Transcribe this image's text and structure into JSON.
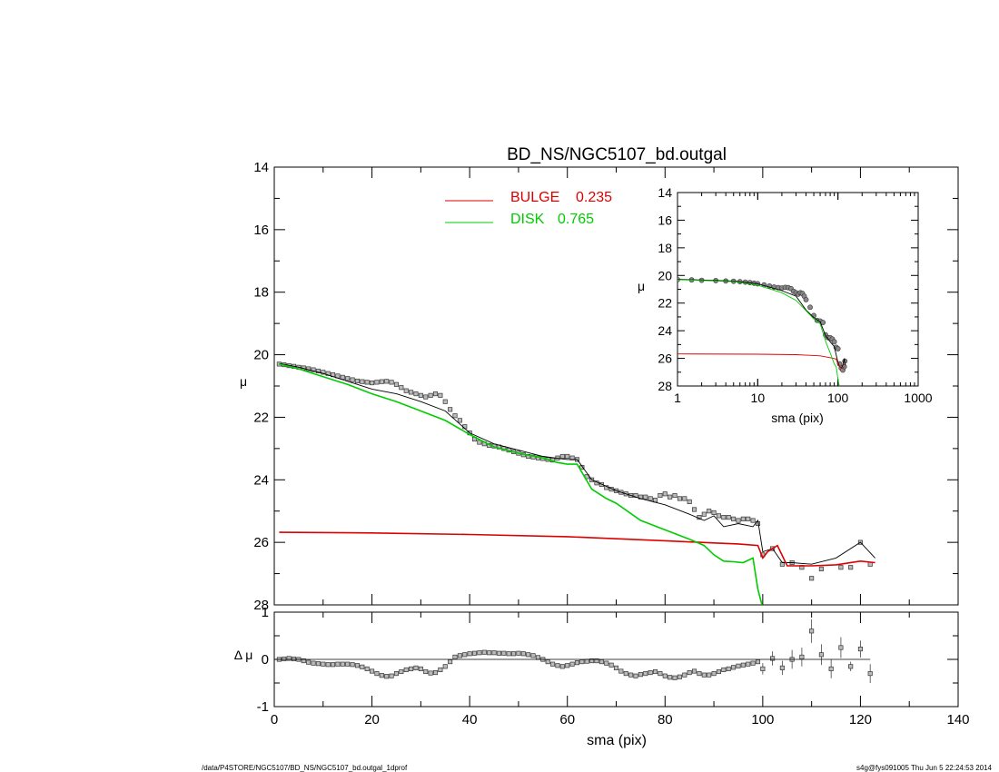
{
  "title": "BD_NS/NGC5107_bd.outgal",
  "footer": {
    "left": "/data/P4STORE/NGC5107/BD_NS/NGC5107_bd.outgal_1dprof",
    "right": "s4g@fys091005  Thu Jun  5 22:24:53 2014"
  },
  "colors": {
    "bulge": "#dd0000",
    "disk": "#00cc00",
    "model": "#000000",
    "data": "#555555"
  },
  "chart_data": [
    {
      "id": "main",
      "type": "line",
      "title": "BD_NS/NGC5107_bd.outgal",
      "xlabel": "",
      "ylabel": "μ",
      "xlim": [
        0,
        140
      ],
      "ylim": [
        28,
        14
      ],
      "y_inverted": true,
      "xticks": [
        "0",
        "20",
        "40",
        "60",
        "80",
        "100",
        "120",
        "140"
      ],
      "yticks": [
        "14",
        "16",
        "18",
        "20",
        "22",
        "24",
        "26",
        "28"
      ],
      "legend": {
        "position": "top-center",
        "entries": [
          {
            "name": "BULGE",
            "value": "0.235",
            "color": "#dd0000"
          },
          {
            "name": "DISK",
            "value": "0.765",
            "color": "#00cc00"
          }
        ]
      },
      "series": [
        {
          "name": "data",
          "style": "squares",
          "x": [
            1,
            2,
            3,
            4,
            5,
            6,
            7,
            8,
            9,
            10,
            11,
            12,
            13,
            14,
            15,
            16,
            17,
            18,
            19,
            20,
            21,
            22,
            23,
            24,
            25,
            26,
            27,
            28,
            29,
            30,
            31,
            32,
            33,
            34,
            35,
            36,
            37,
            38,
            39,
            40,
            41,
            42,
            43,
            44,
            45,
            46,
            47,
            48,
            49,
            50,
            51,
            52,
            53,
            54,
            55,
            56,
            57,
            58,
            59,
            60,
            61,
            62,
            63,
            64,
            65,
            66,
            67,
            68,
            69,
            70,
            71,
            72,
            73,
            74,
            75,
            76,
            77,
            78,
            79,
            80,
            81,
            82,
            83,
            84,
            85,
            86,
            87,
            88,
            89,
            90,
            91,
            92,
            93,
            94,
            95,
            96,
            97,
            98,
            99,
            100,
            102,
            104,
            106,
            108,
            110,
            112,
            114,
            116,
            118,
            120,
            122
          ],
          "y": [
            20.3,
            20.32,
            20.35,
            20.37,
            20.4,
            20.42,
            20.45,
            20.48,
            20.52,
            20.56,
            20.6,
            20.64,
            20.68,
            20.72,
            20.76,
            20.8,
            20.84,
            20.86,
            20.88,
            20.9,
            20.88,
            20.86,
            20.85,
            20.88,
            20.95,
            21.05,
            21.15,
            21.2,
            21.25,
            21.3,
            21.35,
            21.3,
            21.25,
            21.3,
            21.5,
            21.75,
            21.95,
            22.1,
            22.3,
            22.5,
            22.7,
            22.8,
            22.85,
            22.9,
            22.92,
            22.95,
            23.0,
            23.05,
            23.1,
            23.15,
            23.2,
            23.25,
            23.27,
            23.3,
            23.32,
            23.35,
            23.37,
            23.3,
            23.25,
            23.25,
            23.3,
            23.35,
            23.6,
            23.9,
            24.0,
            24.1,
            24.15,
            24.25,
            24.3,
            24.35,
            24.4,
            24.45,
            24.5,
            24.5,
            24.55,
            24.55,
            24.6,
            24.65,
            24.5,
            24.45,
            24.55,
            24.5,
            24.6,
            24.6,
            24.7,
            24.95,
            25.2,
            25.1,
            25.0,
            25.05,
            25.15,
            25.2,
            25.2,
            25.25,
            25.3,
            25.25,
            25.25,
            25.3,
            25.4,
            26.4,
            26.2,
            26.7,
            26.65,
            26.8,
            27.15,
            26.85,
            28.1,
            26.8,
            26.8,
            26.0,
            26.7
          ]
        },
        {
          "name": "model",
          "style": "line",
          "x": [
            1,
            5,
            10,
            15,
            20,
            25,
            30,
            35,
            40,
            45,
            50,
            55,
            60,
            62,
            65,
            70,
            75,
            80,
            85,
            88,
            90,
            92,
            95,
            98,
            99,
            100,
            102,
            104,
            106,
            110,
            115,
            120,
            123
          ],
          "y": [
            20.28,
            20.4,
            20.6,
            20.85,
            21.1,
            21.25,
            21.5,
            21.8,
            22.5,
            22.85,
            23.05,
            23.25,
            23.35,
            23.35,
            24.0,
            24.35,
            24.6,
            24.8,
            25.1,
            25.3,
            25.15,
            25.5,
            25.4,
            25.5,
            25.3,
            26.3,
            26.2,
            26.65,
            26.65,
            26.7,
            26.5,
            26.0,
            26.5
          ]
        },
        {
          "name": "BULGE",
          "style": "line",
          "x": [
            1,
            20,
            40,
            60,
            80,
            90,
            95,
            99,
            100,
            101,
            103,
            105,
            110,
            115,
            120,
            123
          ],
          "y": [
            25.68,
            25.7,
            25.75,
            25.82,
            25.95,
            26.02,
            26.05,
            26.1,
            26.5,
            26.3,
            26.1,
            26.75,
            26.75,
            26.72,
            26.6,
            26.65
          ]
        },
        {
          "name": "DISK",
          "style": "line",
          "x": [
            1,
            5,
            10,
            15,
            20,
            25,
            30,
            35,
            40,
            45,
            50,
            55,
            58,
            60,
            62,
            65,
            68,
            70,
            75,
            80,
            85,
            88,
            90,
            92,
            94,
            96,
            98,
            99,
            100
          ],
          "y": [
            20.3,
            20.45,
            20.7,
            20.95,
            21.25,
            21.5,
            21.8,
            22.1,
            22.55,
            22.95,
            23.15,
            23.3,
            23.45,
            23.5,
            23.5,
            24.3,
            24.6,
            24.75,
            25.3,
            25.6,
            25.9,
            26.1,
            26.4,
            26.6,
            26.62,
            26.65,
            26.5,
            27.5,
            28.1
          ]
        }
      ]
    },
    {
      "id": "residual",
      "type": "scatter",
      "xlabel": "sma (pix)",
      "ylabel": "Δ μ",
      "xlim": [
        0,
        140
      ],
      "ylim": [
        -1,
        1
      ],
      "xticks": [
        "0",
        "20",
        "40",
        "60",
        "80",
        "100",
        "120",
        "140"
      ],
      "yticks": [
        "1",
        "0",
        "-1"
      ],
      "series": [
        {
          "name": "residual",
          "x": [
            1,
            2,
            3,
            4,
            5,
            6,
            7,
            8,
            9,
            10,
            11,
            12,
            13,
            14,
            15,
            16,
            17,
            18,
            19,
            20,
            21,
            22,
            23,
            24,
            25,
            26,
            27,
            28,
            29,
            30,
            31,
            32,
            33,
            34,
            35,
            36,
            37,
            38,
            39,
            40,
            41,
            42,
            43,
            44,
            45,
            46,
            47,
            48,
            49,
            50,
            51,
            52,
            53,
            54,
            55,
            56,
            57,
            58,
            59,
            60,
            61,
            62,
            63,
            64,
            65,
            66,
            67,
            68,
            69,
            70,
            71,
            72,
            73,
            74,
            75,
            76,
            77,
            78,
            79,
            80,
            81,
            82,
            83,
            84,
            85,
            86,
            87,
            88,
            89,
            90,
            91,
            92,
            93,
            94,
            95,
            96,
            97,
            98,
            99,
            100,
            102,
            104,
            106,
            108,
            110,
            112,
            114,
            116,
            118,
            120,
            122
          ],
          "y": [
            0.0,
            0.01,
            0.02,
            0.01,
            0.0,
            -0.03,
            -0.06,
            -0.08,
            -0.09,
            -0.1,
            -0.11,
            -0.11,
            -0.1,
            -0.1,
            -0.1,
            -0.11,
            -0.13,
            -0.16,
            -0.2,
            -0.25,
            -0.3,
            -0.34,
            -0.36,
            -0.35,
            -0.3,
            -0.26,
            -0.22,
            -0.2,
            -0.18,
            -0.2,
            -0.26,
            -0.29,
            -0.28,
            -0.22,
            -0.15,
            -0.05,
            0.05,
            0.08,
            0.1,
            0.12,
            0.13,
            0.14,
            0.15,
            0.14,
            0.14,
            0.13,
            0.13,
            0.12,
            0.12,
            0.13,
            0.12,
            0.1,
            0.08,
            0.04,
            0.0,
            -0.05,
            -0.1,
            -0.13,
            -0.15,
            -0.13,
            -0.1,
            -0.07,
            -0.05,
            -0.04,
            -0.03,
            -0.03,
            -0.05,
            -0.08,
            -0.12,
            -0.18,
            -0.25,
            -0.3,
            -0.33,
            -0.35,
            -0.32,
            -0.3,
            -0.28,
            -0.26,
            -0.3,
            -0.35,
            -0.38,
            -0.39,
            -0.37,
            -0.33,
            -0.28,
            -0.25,
            -0.3,
            -0.33,
            -0.33,
            -0.3,
            -0.26,
            -0.22,
            -0.2,
            -0.17,
            -0.14,
            -0.12,
            -0.1,
            -0.08,
            -0.05,
            -0.2,
            0.02,
            -0.18,
            0.0,
            0.05,
            0.6,
            0.1,
            -0.2,
            0.25,
            -0.15,
            0.22,
            -0.3
          ],
          "errors": [
            0,
            0,
            0,
            0,
            0,
            0,
            0,
            0,
            0,
            0,
            0,
            0,
            0,
            0,
            0,
            0,
            0,
            0,
            0,
            0,
            0,
            0,
            0,
            0,
            0,
            0,
            0,
            0,
            0,
            0,
            0,
            0,
            0,
            0,
            0,
            0,
            0,
            0,
            0,
            0,
            0,
            0,
            0,
            0,
            0,
            0,
            0,
            0,
            0,
            0,
            0,
            0,
            0,
            0,
            0,
            0,
            0,
            0,
            0,
            0,
            0,
            0,
            0,
            0,
            0,
            0,
            0,
            0,
            0,
            0,
            0,
            0,
            0,
            0,
            0,
            0,
            0,
            0,
            0,
            0,
            0,
            0,
            0,
            0,
            0,
            0,
            0,
            0,
            0,
            0,
            0,
            0,
            0,
            0,
            0,
            0,
            0,
            0,
            0,
            0.12,
            0.15,
            0.15,
            0.2,
            0.2,
            0.25,
            0.22,
            0.2,
            0.22,
            0.1,
            0.18,
            0.2
          ]
        },
        {
          "name": "zero",
          "style": "line",
          "x": [
            0,
            122
          ],
          "y": [
            0,
            0
          ]
        }
      ]
    },
    {
      "id": "inset",
      "type": "line",
      "xlabel": "sma (pix)",
      "ylabel": "μ",
      "x_log": true,
      "xlim": [
        1,
        1000
      ],
      "ylim": [
        28,
        14
      ],
      "y_inverted": true,
      "xticks": [
        "1",
        "10",
        "100",
        "1000"
      ],
      "yticks": [
        "14",
        "16",
        "18",
        "20",
        "22",
        "24",
        "26",
        "28"
      ],
      "series": [
        {
          "name": "data",
          "style": "circles",
          "x": [
            1,
            1.5,
            2,
            3,
            4,
            5,
            6,
            7,
            8,
            9,
            10,
            12,
            14,
            16,
            18,
            20,
            22,
            24,
            26,
            28,
            30,
            32,
            34,
            36,
            38,
            40,
            45,
            50,
            55,
            60,
            65,
            70,
            75,
            80,
            85,
            90,
            95,
            100,
            105,
            110,
            115,
            120,
            122
          ],
          "y": [
            20.3,
            20.32,
            20.35,
            20.37,
            20.4,
            20.42,
            20.45,
            20.48,
            20.52,
            20.56,
            20.6,
            20.68,
            20.76,
            20.84,
            20.88,
            20.9,
            20.86,
            20.88,
            20.95,
            21.15,
            21.25,
            21.35,
            21.25,
            21.3,
            21.5,
            21.75,
            22.3,
            22.9,
            23.25,
            23.3,
            23.4,
            24.3,
            24.5,
            24.5,
            24.6,
            24.8,
            25.2,
            25.3,
            26.4,
            26.7,
            26.85,
            26.6,
            26.2
          ]
        },
        {
          "name": "model",
          "style": "line",
          "x": [
            1,
            5,
            10,
            20,
            30,
            40,
            50,
            60,
            70,
            80,
            90,
            100,
            105,
            110,
            115,
            120,
            123
          ],
          "y": [
            20.28,
            20.4,
            20.6,
            21.1,
            21.5,
            22.5,
            23.05,
            23.35,
            24.35,
            24.8,
            25.15,
            26.3,
            26.6,
            26.7,
            26.5,
            26.0,
            26.5
          ]
        },
        {
          "name": "BULGE",
          "style": "line",
          "x": [
            1,
            10,
            30,
            60,
            80,
            95,
            100,
            105,
            110,
            115,
            120
          ],
          "y": [
            25.68,
            25.7,
            25.73,
            25.82,
            25.95,
            26.05,
            26.4,
            26.6,
            26.7,
            26.7,
            26.6
          ]
        },
        {
          "name": "DISK",
          "style": "line",
          "x": [
            1,
            5,
            10,
            20,
            30,
            40,
            50,
            60,
            70,
            80,
            90,
            95,
            100,
            105
          ],
          "y": [
            20.3,
            20.45,
            20.7,
            21.25,
            21.8,
            22.55,
            23.15,
            23.5,
            24.75,
            25.6,
            26.4,
            26.6,
            27.5,
            28.1
          ]
        }
      ]
    }
  ]
}
